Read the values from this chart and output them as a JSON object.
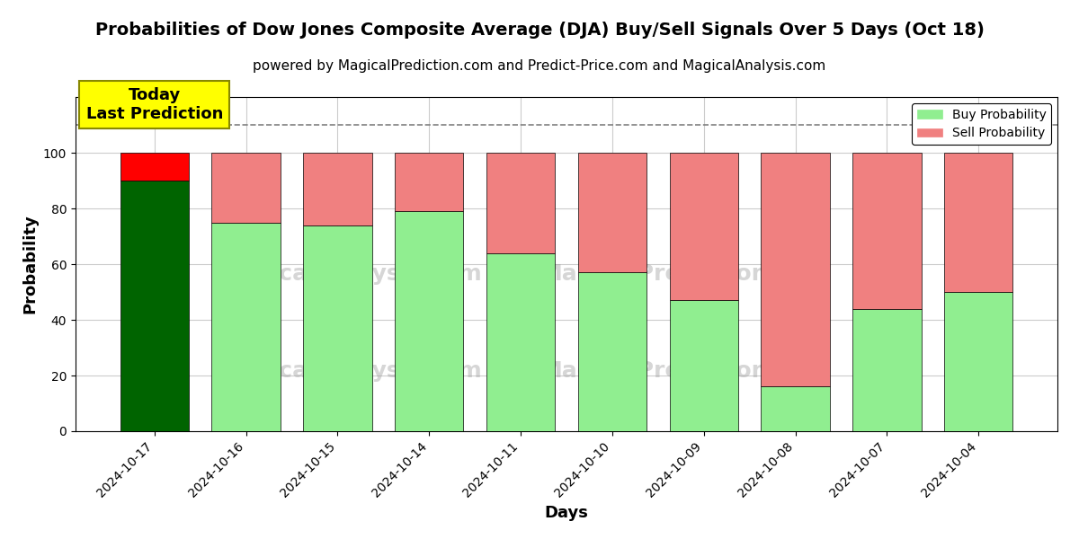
{
  "title": "Probabilities of Dow Jones Composite Average (DJA) Buy/Sell Signals Over 5 Days (Oct 18)",
  "subtitle": "powered by MagicalPrediction.com and Predict-Price.com and MagicalAnalysis.com",
  "xlabel": "Days",
  "ylabel": "Probability",
  "categories": [
    "2024-10-17",
    "2024-10-16",
    "2024-10-15",
    "2024-10-14",
    "2024-10-11",
    "2024-10-10",
    "2024-10-09",
    "2024-10-08",
    "2024-10-07",
    "2024-10-04"
  ],
  "buy_values": [
    90,
    75,
    74,
    79,
    64,
    57,
    47,
    16,
    44,
    50
  ],
  "sell_values": [
    10,
    25,
    26,
    21,
    36,
    43,
    53,
    84,
    56,
    50
  ],
  "today_buy_color": "#006400",
  "today_sell_color": "#FF0000",
  "normal_buy_color": "#90EE90",
  "normal_sell_color": "#F08080",
  "today_annotation": "Today\nLast Prediction",
  "today_annotation_bg": "#FFFF00",
  "dashed_line_y": 110,
  "ylim": [
    0,
    120
  ],
  "yticks": [
    0,
    20,
    40,
    60,
    80,
    100
  ],
  "legend_buy_label": "Buy Probability",
  "legend_sell_label": "Sell Probability",
  "background_color": "#ffffff",
  "grid_color": "#cccccc"
}
